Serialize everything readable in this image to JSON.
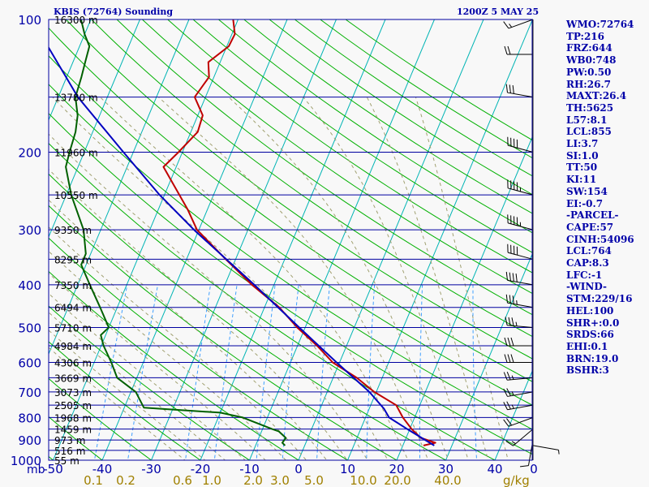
{
  "header": {
    "title": "KBIS (72764) Sounding",
    "time": "1200Z  5 MAY 25"
  },
  "indices": [
    "WMO:72764",
    "TP:216",
    "FRZ:644",
    "WB0:748",
    "PW:0.50",
    "RH:26.7",
    "MAXT:26.4",
    "TH:5625",
    "L57:8.1",
    "LCL:855",
    "LI:3.7",
    "SI:1.0",
    "TT:50",
    "KI:11",
    "SW:154",
    "EI:-0.7",
    "-PARCEL-",
    "CAPE:57",
    "CINH:54096",
    "LCL:764",
    "CAP:8.3",
    "LFC:-1",
    "-WIND-",
    "STM:229/16",
    "HEL:100",
    "SHR+:0.0",
    "SRDS:66",
    "EHI:0.1",
    "BRN:19.0",
    "BSHR:3"
  ],
  "colors": {
    "isobar": "#0000a0",
    "isotherm": "#00b4b4",
    "dry_adiabat": "#00b000",
    "moist_adiabat": "#a0a070",
    "mixing_ratio": "#40a0ff",
    "temperature": "#c00000",
    "dewpoint": "#006000",
    "parcel": "#0000c0",
    "axis_text": "#0000a8",
    "mixing_text": "#a08000"
  },
  "chart_data": {
    "type": "line",
    "title": "KBIS (72764) Sounding",
    "xlabel": "",
    "ylabel": "mb",
    "x_scale": "skew-T temperature (C)",
    "y_scale": "log pressure (mb)",
    "ylim": [
      1000,
      100
    ],
    "pressure_ticks": [
      100,
      200,
      300,
      400,
      500,
      600,
      700,
      800,
      900,
      1000
    ],
    "temperature_ticks": [
      -50,
      -40,
      -30,
      -20,
      -10,
      0,
      10,
      20,
      30,
      40
    ],
    "temperature_tick_labels": [
      "-50",
      "-40",
      "-30",
      "-20",
      "-10",
      "0",
      "10",
      "20",
      "30",
      "40"
    ],
    "mixing_ratio_labels": [
      "0.1",
      "0.2",
      "0.6",
      "1.0",
      "2.0",
      "3.0",
      "5.0",
      "10.0",
      "20.0",
      "40.0"
    ],
    "mixing_ratio_unit": "g/kg",
    "bottom_axis_unit": "0",
    "height_levels": [
      {
        "p": 100,
        "label": "16300 m"
      },
      {
        "p": 150,
        "label": "13780 m"
      },
      {
        "p": 200,
        "label": "11960 m"
      },
      {
        "p": 250,
        "label": "10550 m"
      },
      {
        "p": 300,
        "label": "9350 m"
      },
      {
        "p": 350,
        "label": "8295 m"
      },
      {
        "p": 400,
        "label": "7350 m"
      },
      {
        "p": 450,
        "label": "6494 m"
      },
      {
        "p": 500,
        "label": "5710 m"
      },
      {
        "p": 550,
        "label": "4984 m"
      },
      {
        "p": 600,
        "label": "4306 m"
      },
      {
        "p": 650,
        "label": "3669 m"
      },
      {
        "p": 700,
        "label": "3073 m"
      },
      {
        "p": 750,
        "label": "2505 m"
      },
      {
        "p": 800,
        "label": "1968 m"
      },
      {
        "p": 850,
        "label": "1459 m"
      },
      {
        "p": 900,
        "label": "973 m"
      },
      {
        "p": 950,
        "label": "516 m"
      },
      {
        "p": 1000,
        "label": "55 m"
      }
    ],
    "series": [
      {
        "role": "temperature",
        "points": [
          [
            926,
            24.2
          ],
          [
            913,
            26.4
          ],
          [
            890,
            23.0
          ],
          [
            850,
            20.4
          ],
          [
            800,
            17.6
          ],
          [
            750,
            15.2
          ],
          [
            700,
            9.6
          ],
          [
            650,
            4.8
          ],
          [
            600,
            -1.4
          ],
          [
            550,
            -6.0
          ],
          [
            500,
            -11.6
          ],
          [
            450,
            -17.0
          ],
          [
            400,
            -24.5
          ],
          [
            350,
            -32.0
          ],
          [
            300,
            -40.4
          ],
          [
            270,
            -44.0
          ],
          [
            216,
            -52.6
          ],
          [
            200,
            -50.8
          ],
          [
            180,
            -48.6
          ],
          [
            165,
            -49.0
          ],
          [
            150,
            -52.2
          ],
          [
            135,
            -51.0
          ],
          [
            125,
            -52.4
          ],
          [
            115,
            -49.6
          ],
          [
            108,
            -49.4
          ],
          [
            100,
            -51.0
          ]
        ]
      },
      {
        "role": "dewpoint",
        "points": [
          [
            926,
            -4.0
          ],
          [
            913,
            -4.8
          ],
          [
            890,
            -4.5
          ],
          [
            860,
            -6.5
          ],
          [
            850,
            -8.0
          ],
          [
            800,
            -15.0
          ],
          [
            780,
            -20.0
          ],
          [
            760,
            -36.0
          ],
          [
            700,
            -39.0
          ],
          [
            650,
            -44.0
          ],
          [
            600,
            -46.5
          ],
          [
            550,
            -49.5
          ],
          [
            520,
            -51.0
          ],
          [
            500,
            -50.0
          ],
          [
            450,
            -53.5
          ],
          [
            400,
            -57.5
          ],
          [
            360,
            -61.0
          ],
          [
            340,
            -61.0
          ],
          [
            300,
            -63.5
          ],
          [
            250,
            -69.0
          ],
          [
            216,
            -72.5
          ],
          [
            200,
            -73.0
          ],
          [
            180,
            -73.5
          ],
          [
            165,
            -74.5
          ],
          [
            150,
            -76.5
          ],
          [
            135,
            -77.0
          ],
          [
            125,
            -77.5
          ],
          [
            115,
            -78.0
          ],
          [
            108,
            -80.0
          ],
          [
            100,
            -82.0
          ]
        ]
      },
      {
        "role": "parcel",
        "points": [
          [
            926,
            26.4
          ],
          [
            850,
            19.5
          ],
          [
            800,
            14.8
          ],
          [
            764,
            13.0
          ],
          [
            700,
            8.6
          ],
          [
            600,
            -0.6
          ],
          [
            500,
            -11.2
          ],
          [
            400,
            -24.0
          ],
          [
            300,
            -41.0
          ],
          [
            250,
            -51.0
          ],
          [
            200,
            -62.0
          ],
          [
            150,
            -76.0
          ],
          [
            100,
            -92.0
          ]
        ]
      }
    ],
    "wind_barbs": [
      {
        "p": 926,
        "dir": 100,
        "spd": 5
      },
      {
        "p": 900,
        "dir": 190,
        "spd": 10
      },
      {
        "p": 850,
        "dir": 230,
        "spd": 15
      },
      {
        "p": 800,
        "dir": 250,
        "spd": 20
      },
      {
        "p": 750,
        "dir": 260,
        "spd": 25
      },
      {
        "p": 700,
        "dir": 260,
        "spd": 25
      },
      {
        "p": 650,
        "dir": 265,
        "spd": 25
      },
      {
        "p": 600,
        "dir": 270,
        "spd": 30
      },
      {
        "p": 550,
        "dir": 270,
        "spd": 30
      },
      {
        "p": 500,
        "dir": 275,
        "spd": 35
      },
      {
        "p": 450,
        "dir": 280,
        "spd": 35
      },
      {
        "p": 400,
        "dir": 280,
        "spd": 40
      },
      {
        "p": 350,
        "dir": 285,
        "spd": 40
      },
      {
        "p": 300,
        "dir": 285,
        "spd": 45
      },
      {
        "p": 250,
        "dir": 285,
        "spd": 45
      },
      {
        "p": 200,
        "dir": 285,
        "spd": 40
      },
      {
        "p": 150,
        "dir": 280,
        "spd": 30
      },
      {
        "p": 120,
        "dir": 270,
        "spd": 20
      },
      {
        "p": 100,
        "dir": 250,
        "spd": 15
      }
    ]
  }
}
